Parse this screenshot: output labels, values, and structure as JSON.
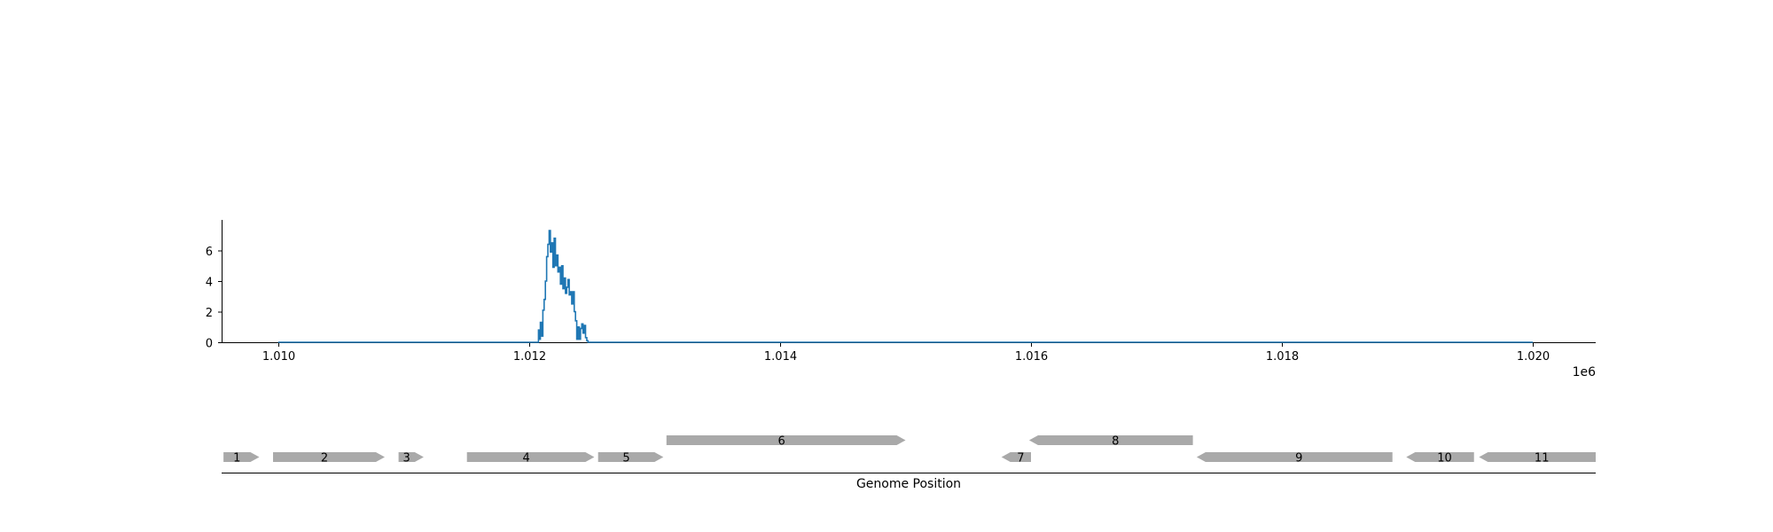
{
  "chart_data": [
    {
      "type": "line",
      "title": "",
      "xlabel": "",
      "ylabel": "",
      "x_offset_label": "1e6",
      "xlim": [
        1.00955,
        1.0205
      ],
      "ylim": [
        0,
        8
      ],
      "x_ticks": [
        {
          "value": 1.01,
          "label": "1.010"
        },
        {
          "value": 1.012,
          "label": "1.012"
        },
        {
          "value": 1.014,
          "label": "1.014"
        },
        {
          "value": 1.016,
          "label": "1.016"
        },
        {
          "value": 1.018,
          "label": "1.018"
        },
        {
          "value": 1.02,
          "label": "1.020"
        }
      ],
      "y_ticks": [
        {
          "value": 0,
          "label": "0"
        },
        {
          "value": 2,
          "label": "2"
        },
        {
          "value": 4,
          "label": "4"
        },
        {
          "value": 6,
          "label": "6"
        }
      ],
      "grid": false,
      "color": "#1f77b4",
      "series": [
        {
          "x": [
            1.01,
            1.01205,
            1.012075,
            1.01208,
            1.01209,
            1.0121,
            1.01211,
            1.01212,
            1.01213,
            1.01214,
            1.01215,
            1.01216,
            1.01217,
            1.01218,
            1.01219,
            1.0122,
            1.01221,
            1.01222,
            1.01223,
            1.01224,
            1.01225,
            1.01226,
            1.01227,
            1.01228,
            1.01229,
            1.0123,
            1.01231,
            1.01232,
            1.01233,
            1.01234,
            1.01235,
            1.01236,
            1.01237,
            1.01238,
            1.01239,
            1.0124,
            1.01241,
            1.01242,
            1.01243,
            1.01244,
            1.01245,
            1.01246,
            1.01247,
            1.01248,
            1.01249,
            1.0125,
            1.02
          ],
          "y": [
            0,
            0,
            0.8,
            0.2,
            1.3,
            0.4,
            2.1,
            2.8,
            4.0,
            5.6,
            6.4,
            7.3,
            5.9,
            6.5,
            4.9,
            6.8,
            5.0,
            5.7,
            4.6,
            4.9,
            3.8,
            5.0,
            3.5,
            4.2,
            3.2,
            3.6,
            4.1,
            3.1,
            3.3,
            2.5,
            3.3,
            2.0,
            1.4,
            0.2,
            1.0,
            0.2,
            0.9,
            1.2,
            0.6,
            1.1,
            0.3,
            0.1,
            0.0,
            0.0,
            0.0,
            0,
            0
          ]
        }
      ]
    },
    {
      "type": "gene-track",
      "xlabel": "Genome Position",
      "fill": "#a9a9a9",
      "genes": [
        {
          "label": "1",
          "start": 1.009565,
          "end": 1.00985,
          "strand": "+",
          "row": 0
        },
        {
          "label": "2",
          "start": 1.00996,
          "end": 1.01085,
          "strand": "+",
          "row": 0
        },
        {
          "label": "3",
          "start": 1.01096,
          "end": 1.01116,
          "strand": "+",
          "row": 0
        },
        {
          "label": "4",
          "start": 1.011505,
          "end": 1.01252,
          "strand": "+",
          "row": 0
        },
        {
          "label": "5",
          "start": 1.01255,
          "end": 1.01307,
          "strand": "+",
          "row": 0
        },
        {
          "label": "6",
          "start": 1.013095,
          "end": 1.015,
          "strand": "+",
          "row": 1
        },
        {
          "label": "7",
          "start": 1.015765,
          "end": 1.016,
          "strand": "-",
          "row": 0
        },
        {
          "label": "8",
          "start": 1.015985,
          "end": 1.01729,
          "strand": "-",
          "row": 1
        },
        {
          "label": "9",
          "start": 1.01732,
          "end": 1.01888,
          "strand": "-",
          "row": 0
        },
        {
          "label": "10",
          "start": 1.01899,
          "end": 1.01953,
          "strand": "-",
          "row": 0
        },
        {
          "label": "11",
          "start": 1.01957,
          "end": 1.0205,
          "strand": "-",
          "row": 0
        }
      ]
    }
  ]
}
